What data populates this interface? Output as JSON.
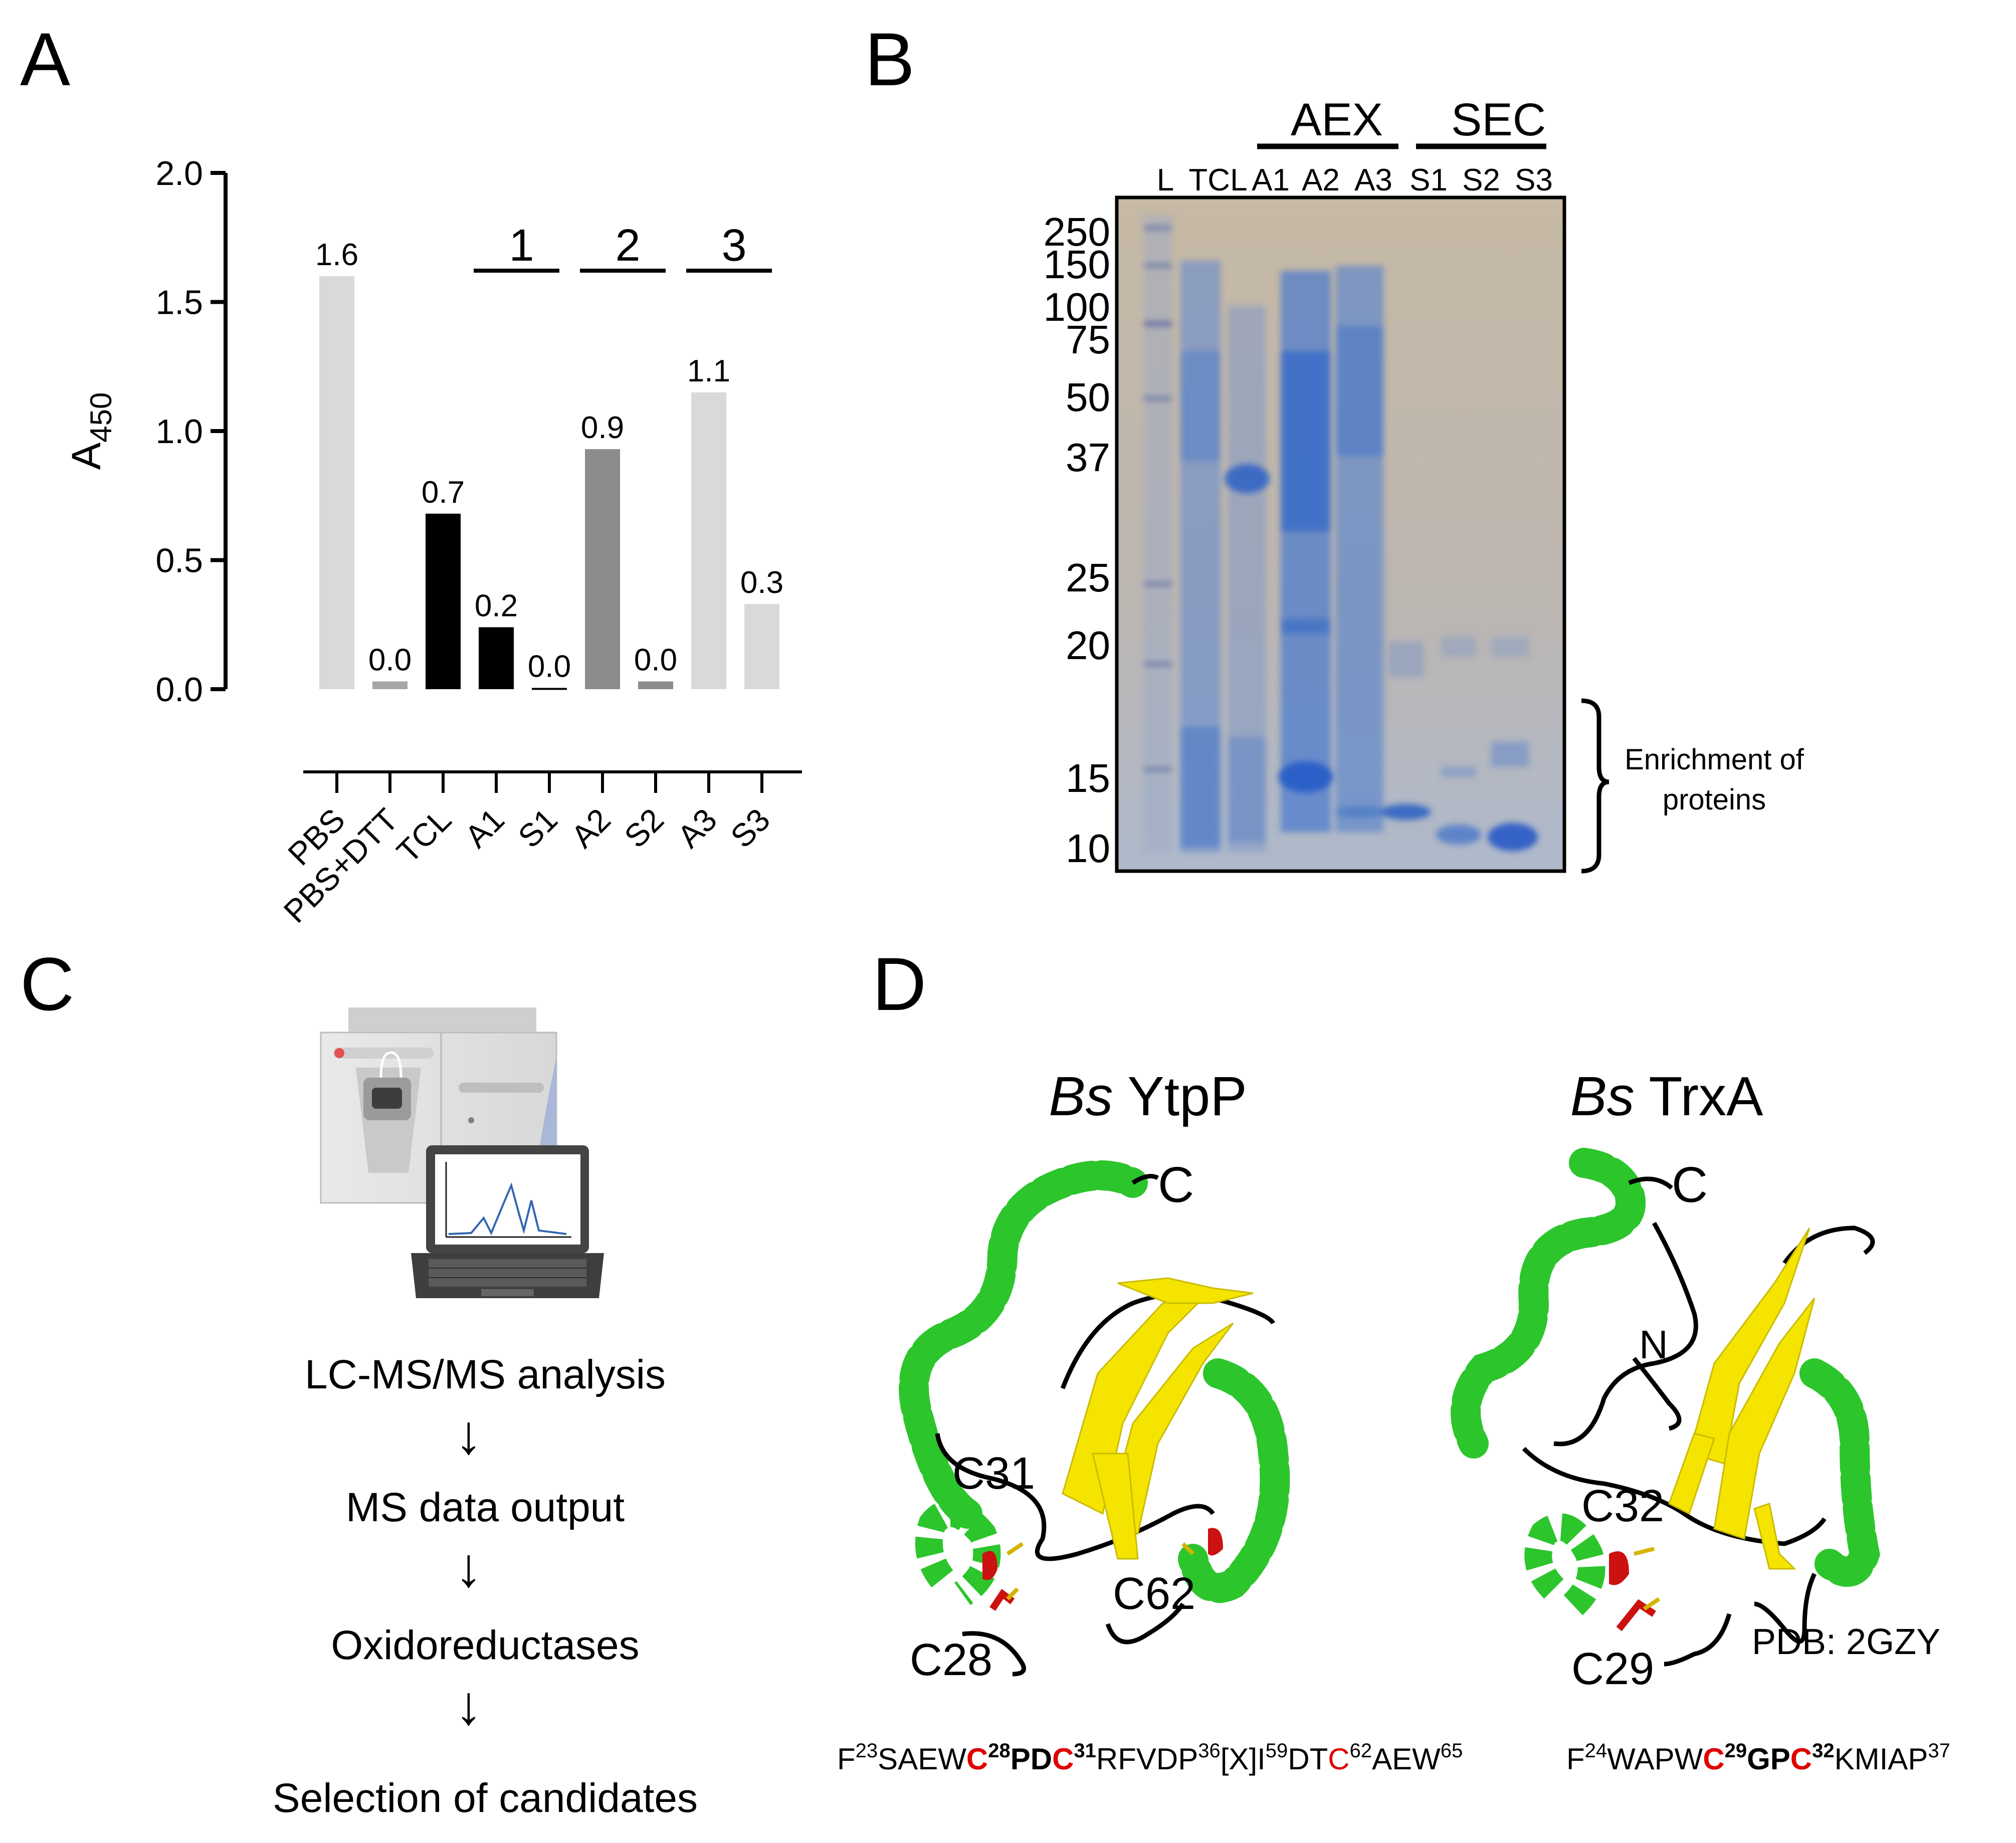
{
  "panels": {
    "A": {
      "letter": "A",
      "chart_data": {
        "type": "bar",
        "ylabel_main": "A",
        "ylabel_sub": "450",
        "ylim": [
          0,
          2.0
        ],
        "yticks": [
          "0.0",
          "0.5",
          "1.0",
          "1.5",
          "2.0"
        ],
        "ytick_values": [
          0,
          0.5,
          1.0,
          1.5,
          2.0
        ],
        "categories": [
          "PBS",
          "PBS+DTT",
          "TCL",
          "A1",
          "S1",
          "A2",
          "S2",
          "A3",
          "S3"
        ],
        "values": [
          1.6,
          0.0,
          0.7,
          0.2,
          0.0,
          0.9,
          0.0,
          1.1,
          0.3
        ],
        "heights": [
          1.6,
          0.03,
          0.68,
          0.24,
          0.005,
          0.93,
          0.03,
          1.15,
          0.33
        ],
        "labels": [
          "1.6",
          "0.0",
          "0.7",
          "0.2",
          "0.0",
          "0.9",
          "0.0",
          "1.1",
          "0.3"
        ],
        "colors": [
          "#d9d9d9",
          "#a6a6a6",
          "#000000",
          "#000000",
          "#000000",
          "#8c8c8c",
          "#8c8c8c",
          "#d9d9d9",
          "#d9d9d9"
        ],
        "groups": [
          {
            "label": "1",
            "from": 3,
            "to": 4
          },
          {
            "label": "2",
            "from": 5,
            "to": 6
          },
          {
            "label": "3",
            "from": 7,
            "to": 8
          }
        ],
        "grid": false
      }
    },
    "B": {
      "letter": "B",
      "header_aex": "AEX",
      "header_sec": "SEC",
      "lanes": [
        "L",
        "TCL",
        "A1",
        "A2",
        "A3",
        "S1",
        "S2",
        "S3"
      ],
      "markers": [
        "250",
        "150",
        "100",
        "75",
        "50",
        "37",
        "25",
        "20",
        "15",
        "10"
      ],
      "bracket_label_line1": "Enrichment of",
      "bracket_label_line2": "proteins"
    },
    "C": {
      "letter": "C",
      "steps": [
        "LC-MS/MS analysis",
        "MS data output",
        "Oxidoreductases",
        "Selection of candidates"
      ],
      "arrow_glyph": "↓"
    },
    "D": {
      "letter": "D",
      "left_title_italic": "Bs",
      "left_title_rest": " YtpP",
      "right_title_italic": "Bs",
      "right_title_rest": " TrxA",
      "left_labels": {
        "c_term": "C",
        "c31": "C31",
        "c62": "C62",
        "c28": "C28"
      },
      "right_labels": {
        "c_term": "C",
        "n_term": "N",
        "c32": "C32",
        "c29": "C29",
        "pdb": "PDB: 2GZY"
      },
      "left_seq": [
        {
          "t": "F",
          "s": "n"
        },
        {
          "t": "23",
          "s": "sup"
        },
        {
          "t": "SAEW",
          "s": "n"
        },
        {
          "t": "C",
          "s": "red"
        },
        {
          "t": "28",
          "s": "supb"
        },
        {
          "t": "PD",
          "s": "b"
        },
        {
          "t": "C",
          "s": "red"
        },
        {
          "t": "31",
          "s": "supb"
        },
        {
          "t": "RFVDP",
          "s": "n"
        },
        {
          "t": "36",
          "s": "sup"
        },
        {
          "t": "[X]I",
          "s": "n"
        },
        {
          "t": "59",
          "s": "sup"
        },
        {
          "t": "DT",
          "s": "n"
        },
        {
          "t": "C",
          "s": "redn"
        },
        {
          "t": "62",
          "s": "sup"
        },
        {
          "t": "AEW",
          "s": "n"
        },
        {
          "t": "65",
          "s": "sup"
        }
      ],
      "right_seq": [
        {
          "t": "F",
          "s": "n"
        },
        {
          "t": "24",
          "s": "sup"
        },
        {
          "t": "WAPW",
          "s": "n"
        },
        {
          "t": "C",
          "s": "red"
        },
        {
          "t": "29",
          "s": "supb"
        },
        {
          "t": "GP",
          "s": "b"
        },
        {
          "t": "C",
          "s": "red"
        },
        {
          "t": "32",
          "s": "supb"
        },
        {
          "t": "KMIAP",
          "s": "n"
        },
        {
          "t": "37",
          "s": "sup"
        }
      ]
    }
  }
}
